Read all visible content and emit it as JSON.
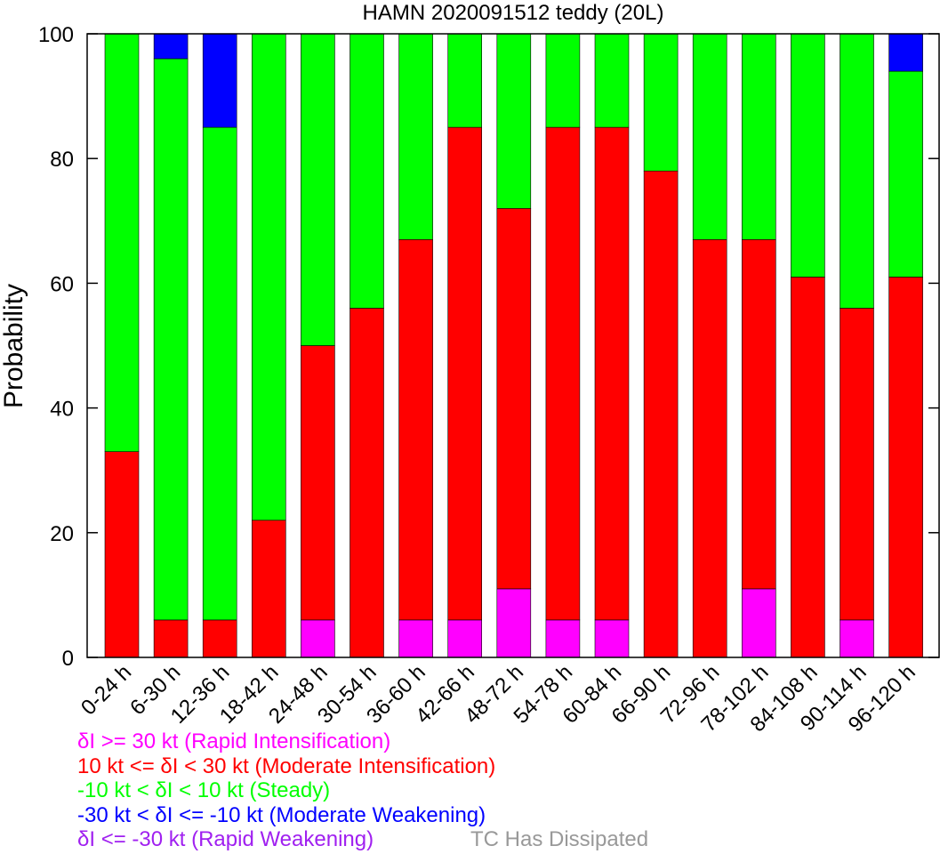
{
  "chart_data": {
    "type": "bar",
    "stacked": true,
    "title": "HAMN 2020091512 teddy (20L)",
    "xlabel": "",
    "ylabel": "Probability",
    "ylim": [
      0,
      100
    ],
    "yticks": [
      0,
      20,
      40,
      60,
      80,
      100
    ],
    "grid": false,
    "categories": [
      "0-24 h",
      "6-30 h",
      "12-36 h",
      "18-42 h",
      "24-48 h",
      "30-54 h",
      "36-60 h",
      "42-66 h",
      "48-72 h",
      "54-78 h",
      "60-84 h",
      "66-90 h",
      "72-96 h",
      "78-102 h",
      "84-108 h",
      "90-114 h",
      "96-120 h"
    ],
    "series": [
      {
        "name": "δI >= 30 kt (Rapid Intensification)",
        "color": "#ff00ff",
        "values": [
          0,
          0,
          0,
          0,
          6,
          0,
          6,
          6,
          11,
          6,
          6,
          0,
          0,
          11,
          0,
          6,
          0
        ]
      },
      {
        "name": "10 kt <= δI < 30 kt (Moderate Intensification)",
        "color": "#ff0000",
        "values": [
          33,
          6,
          6,
          22,
          44,
          56,
          61,
          79,
          61,
          79,
          79,
          78,
          67,
          56,
          61,
          50,
          61
        ]
      },
      {
        "name": "-10 kt < δI < 10 kt (Steady)",
        "color": "#00ff00",
        "values": [
          67,
          90,
          79,
          78,
          50,
          44,
          33,
          15,
          28,
          15,
          15,
          22,
          33,
          33,
          39,
          44,
          33
        ]
      },
      {
        "name": "-30 kt < δI <= -10 kt (Moderate Weakening)",
        "color": "#0000ff",
        "values": [
          0,
          4,
          15,
          0,
          0,
          0,
          0,
          0,
          0,
          0,
          0,
          0,
          0,
          0,
          0,
          0,
          6
        ]
      },
      {
        "name": "δI <= -30 kt (Rapid Weakening)",
        "color": "#a020f0",
        "values": [
          0,
          0,
          0,
          0,
          0,
          0,
          0,
          0,
          0,
          0,
          0,
          0,
          0,
          0,
          0,
          0,
          0
        ]
      }
    ],
    "legend_placement": "bottom",
    "extra_legend": {
      "label": "TC Has Dissipated",
      "color": "#999999"
    }
  }
}
